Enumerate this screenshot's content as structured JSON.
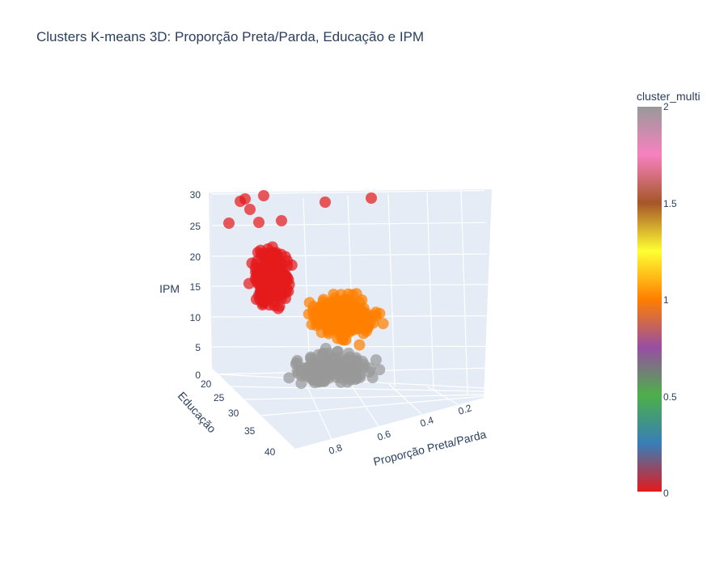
{
  "chart_data": {
    "type": "scatter3d",
    "title": "Clusters K-means 3D: Proporção Preta/Parda, Educação e IPM",
    "axes": {
      "x": {
        "label": "Proporção Preta/Parda",
        "ticks": [
          "0.8",
          "0.6",
          "0.4",
          "0.2"
        ],
        "range": [
          0.1,
          0.95
        ]
      },
      "y": {
        "label": "Educação",
        "ticks": [
          "20",
          "25",
          "30",
          "35",
          "40"
        ],
        "range": [
          18,
          42
        ]
      },
      "z": {
        "label": "IPM",
        "ticks": [
          "0",
          "5",
          "10",
          "15",
          "20",
          "25",
          "30"
        ],
        "range": [
          0,
          30
        ]
      }
    },
    "colorbar": {
      "title": "cluster_multi",
      "ticks": [
        "0",
        "0.5",
        "1",
        "1.5",
        "2"
      ],
      "range": [
        0,
        2
      ],
      "colorscale": [
        "#e41a1c",
        "#377eb8",
        "#4daf4a",
        "#984ea3",
        "#ff7f00",
        "#ffff33",
        "#a65628",
        "#f781bf",
        "#999999"
      ]
    },
    "clusters": [
      {
        "value": 0,
        "color": "#e41a1c",
        "proporcao_range": [
          0.55,
          0.95
        ],
        "educacao_range": [
          18,
          28
        ],
        "ipm_range": [
          8,
          30
        ]
      },
      {
        "value": 1,
        "color": "#ff7f00",
        "proporcao_range": [
          0.3,
          0.85
        ],
        "educacao_range": [
          18,
          38
        ],
        "ipm_range": [
          5,
          20
        ]
      },
      {
        "value": 2,
        "color": "#999999",
        "proporcao_range": [
          0.3,
          0.9
        ],
        "educacao_range": [
          25,
          42
        ],
        "ipm_range": [
          0,
          8
        ]
      }
    ]
  }
}
